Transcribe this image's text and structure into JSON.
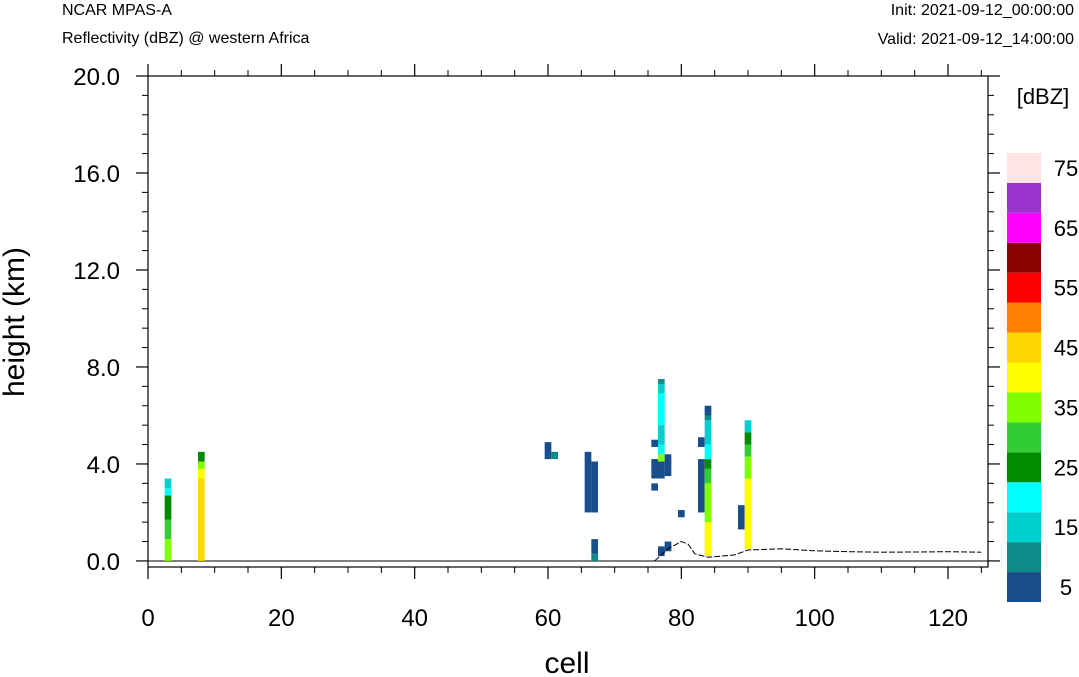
{
  "header": {
    "model": "NCAR MPAS-A",
    "field": "Reflectivity (dBZ) @ western Africa",
    "init": "Init: 2021-09-12_00:00:00",
    "valid": "Valid: 2021-09-12_14:00:00"
  },
  "chart_data": {
    "type": "heatmap",
    "xlabel": "cell",
    "ylabel": "height (km)",
    "xlim": [
      0,
      126
    ],
    "ylim": [
      -0.25,
      20
    ],
    "xticks": [
      "0",
      "20",
      "40",
      "60",
      "80",
      "100",
      "120"
    ],
    "yticks": [
      "0.0",
      "4.0",
      "8.0",
      "12.0",
      "16.0",
      "20.0"
    ],
    "colorbar": {
      "unit": "[dBZ]",
      "levels": [
        5,
        10,
        15,
        20,
        25,
        30,
        35,
        40,
        45,
        50,
        55,
        60,
        65,
        70,
        75
      ],
      "tick_labels": [
        "5",
        "15",
        "25",
        "35",
        "45",
        "55",
        "65",
        "75"
      ],
      "colors": [
        "#174e8b",
        "#0e8a8a",
        "#00cfcf",
        "#00ffff",
        "#008b00",
        "#32cd32",
        "#7fff00",
        "#ffff00",
        "#ffd700",
        "#ff7f00",
        "#ff0000",
        "#8b0000",
        "#ff00ff",
        "#9a32cd",
        "#ffe4e1"
      ]
    },
    "cells": [
      {
        "x": 3,
        "segments": [
          [
            0.0,
            0.9,
            35
          ],
          [
            0.9,
            1.7,
            30
          ],
          [
            1.7,
            2.7,
            25
          ],
          [
            2.7,
            3.0,
            20
          ],
          [
            3.0,
            3.4,
            15
          ]
        ]
      },
      {
        "x": 8,
        "segments": [
          [
            0.0,
            3.4,
            45
          ],
          [
            3.4,
            3.8,
            40
          ],
          [
            3.8,
            4.1,
            35
          ],
          [
            4.1,
            4.5,
            25
          ]
        ]
      },
      {
        "x": 60,
        "segments": [
          [
            4.2,
            4.9,
            5
          ]
        ]
      },
      {
        "x": 61,
        "segments": [
          [
            4.2,
            4.5,
            10
          ]
        ]
      },
      {
        "x": 66,
        "segments": [
          [
            2.0,
            4.5,
            5
          ]
        ]
      },
      {
        "x": 67,
        "segments": [
          [
            0.0,
            0.3,
            10
          ],
          [
            0.3,
            0.9,
            5
          ],
          [
            2.0,
            4.1,
            5
          ]
        ]
      },
      {
        "x": 76,
        "segments": [
          [
            2.9,
            3.2,
            5
          ],
          [
            3.4,
            4.2,
            5
          ],
          [
            4.7,
            5.0,
            5
          ]
        ]
      },
      {
        "x": 77,
        "segments": [
          [
            0.2,
            0.6,
            5
          ],
          [
            3.4,
            4.1,
            5
          ],
          [
            4.1,
            4.4,
            35
          ],
          [
            4.4,
            4.8,
            20
          ],
          [
            4.8,
            5.6,
            15
          ],
          [
            5.6,
            6.9,
            20
          ],
          [
            6.9,
            7.3,
            15
          ],
          [
            7.3,
            7.5,
            10
          ]
        ]
      },
      {
        "x": 78,
        "segments": [
          [
            0.4,
            0.8,
            5
          ],
          [
            3.5,
            4.4,
            5
          ]
        ]
      },
      {
        "x": 80,
        "segments": [
          [
            1.8,
            2.1,
            5
          ]
        ]
      },
      {
        "x": 83,
        "segments": [
          [
            2.0,
            4.2,
            5
          ],
          [
            4.7,
            5.1,
            5
          ]
        ]
      },
      {
        "x": 84,
        "segments": [
          [
            0.2,
            1.6,
            40
          ],
          [
            1.6,
            3.2,
            35
          ],
          [
            3.2,
            3.8,
            30
          ],
          [
            3.8,
            4.2,
            25
          ],
          [
            4.2,
            4.8,
            20
          ],
          [
            4.8,
            5.8,
            15
          ],
          [
            5.8,
            6.0,
            10
          ],
          [
            6.0,
            6.4,
            5
          ]
        ]
      },
      {
        "x": 89,
        "segments": [
          [
            1.3,
            2.3,
            5
          ]
        ]
      },
      {
        "x": 90,
        "segments": [
          [
            0.5,
            3.4,
            40
          ],
          [
            3.4,
            4.3,
            35
          ],
          [
            4.3,
            4.8,
            30
          ],
          [
            4.8,
            5.3,
            25
          ],
          [
            5.3,
            5.8,
            15
          ]
        ]
      }
    ],
    "terrain": [
      [
        76,
        0.0
      ],
      [
        78,
        0.5
      ],
      [
        80,
        0.8
      ],
      [
        81,
        0.7
      ],
      [
        82,
        0.3
      ],
      [
        84,
        0.15
      ],
      [
        86,
        0.2
      ],
      [
        88,
        0.25
      ],
      [
        90,
        0.45
      ],
      [
        95,
        0.5
      ],
      [
        100,
        0.42
      ],
      [
        105,
        0.38
      ],
      [
        110,
        0.36
      ],
      [
        115,
        0.37
      ],
      [
        120,
        0.38
      ],
      [
        125,
        0.36
      ]
    ]
  }
}
